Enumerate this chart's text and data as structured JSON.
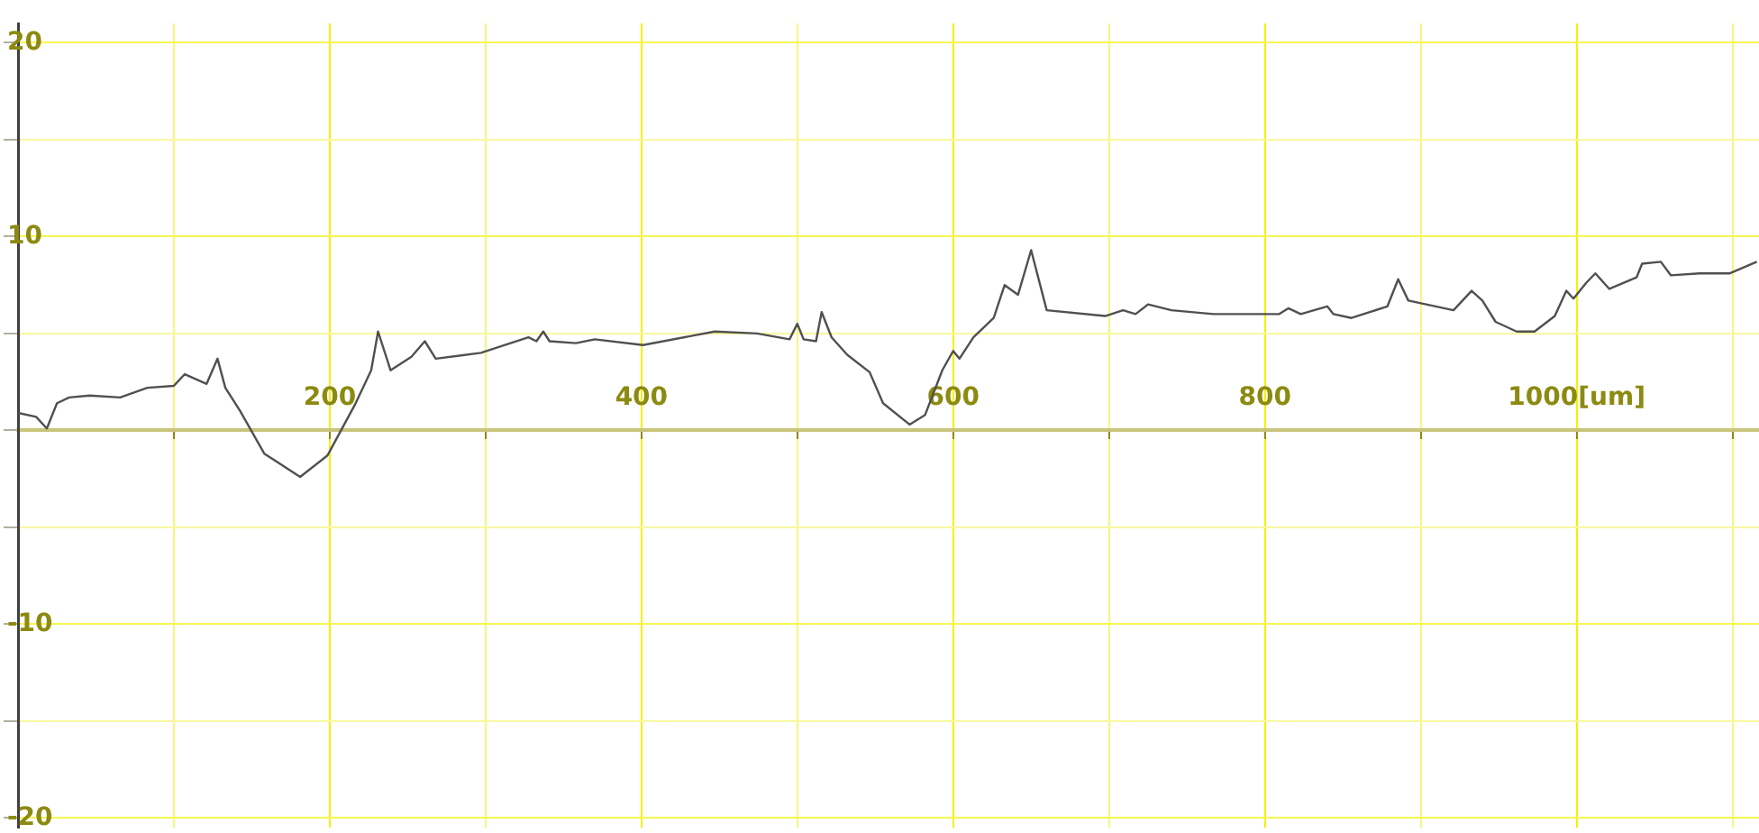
{
  "chart_data": {
    "type": "line",
    "marker": "none",
    "grid": true,
    "line_style": "solid",
    "x": [
      0,
      11.6,
      18.5,
      25,
      32.8,
      46,
      65.5,
      83,
      100,
      107,
      121,
      128,
      133,
      142.5,
      158,
      181,
      198.5,
      216,
      226.6,
      231,
      239,
      252.4,
      261,
      268,
      297,
      327.5,
      332.6,
      337,
      341,
      358,
      370,
      401,
      447,
      474,
      495,
      500,
      504,
      512,
      515.6,
      522,
      532,
      546.4,
      555,
      572,
      582,
      593,
      600,
      604,
      613,
      626,
      633,
      641.6,
      650,
      660,
      697.5,
      709,
      717,
      725,
      740,
      767,
      809,
      815,
      823,
      840,
      844,
      855.5,
      878.6,
      885.5,
      892,
      921,
      932.6,
      939.5,
      948,
      961.5,
      973,
      986,
      993.4,
      998,
      1006,
      1012,
      1021,
      1038.5,
      1042,
      1054,
      1060.5,
      1079,
      1098,
      1115.6
    ],
    "series": [
      {
        "color": "#505050",
        "values": [
          0.9,
          0.7,
          0.1,
          1.4,
          1.7,
          1.8,
          1.7,
          2.2,
          2.3,
          2.9,
          2.4,
          3.7,
          2.2,
          1.0,
          -1.2,
          -2.4,
          -1.3,
          1.3,
          3.1,
          5.1,
          3.1,
          3.8,
          4.6,
          3.7,
          4.0,
          4.8,
          4.6,
          5.1,
          4.6,
          4.5,
          4.7,
          4.4,
          5.1,
          5.0,
          4.7,
          5.5,
          4.7,
          4.6,
          6.1,
          4.8,
          3.9,
          3.0,
          1.4,
          0.3,
          0.8,
          3.1,
          4.1,
          3.7,
          4.8,
          5.8,
          7.5,
          7.0,
          9.3,
          6.2,
          5.9,
          6.2,
          6.0,
          6.5,
          6.2,
          6.0,
          6.0,
          6.3,
          6.0,
          6.4,
          6.0,
          5.8,
          6.4,
          7.8,
          6.7,
          6.2,
          7.2,
          6.7,
          5.6,
          5.1,
          5.1,
          5.9,
          7.2,
          6.8,
          7.6,
          8.1,
          7.3,
          7.9,
          8.6,
          8.7,
          8.0,
          8.1,
          8.1,
          8.7
        ]
      }
    ],
    "xlim": [
      0,
      1117
    ],
    "ylim": [
      -20.5,
      21
    ],
    "xticks": [
      {
        "value": 100,
        "label": null
      },
      200,
      {
        "value": 300,
        "label": null
      },
      400,
      {
        "value": 500,
        "label": null
      },
      600,
      {
        "value": 700,
        "label": null
      },
      800,
      {
        "value": 900,
        "label": null
      },
      {
        "value": 1000,
        "label": "1000[um]"
      },
      {
        "value": 1100,
        "label": null
      }
    ],
    "yticks": [
      -20,
      {
        "value": -15,
        "label": null
      },
      -10,
      {
        "value": -5,
        "label": null
      },
      {
        "value": 0,
        "label": null
      },
      {
        "value": 5,
        "label": null
      },
      10,
      {
        "value": 15,
        "label": null
      },
      20
    ]
  }
}
